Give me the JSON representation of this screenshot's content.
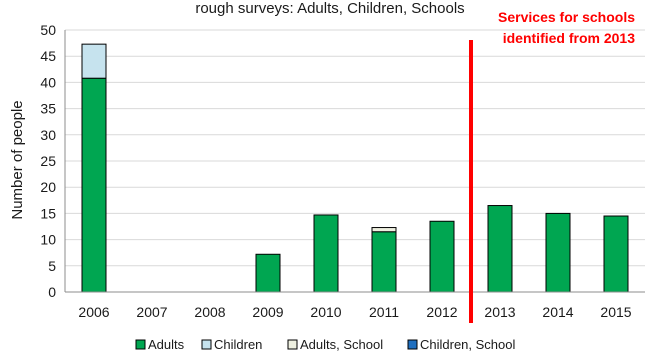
{
  "chart_data": {
    "type": "bar",
    "stacked": true,
    "title": "rough surveys: Adults, Children, Schools",
    "ylabel": "Number of people",
    "xlabel": "",
    "ylim": [
      0,
      50
    ],
    "yticks": [
      0,
      5,
      10,
      15,
      20,
      25,
      30,
      35,
      40,
      45,
      50
    ],
    "grid": true,
    "legend": "bottom",
    "categories": [
      "2006",
      "2007",
      "2008",
      "2009",
      "2010",
      "2011",
      "2012",
      "2013",
      "2014",
      "2015"
    ],
    "series": [
      {
        "name": "Adults",
        "color": "#00a651",
        "values": [
          40.8,
          0,
          0,
          7.2,
          14.7,
          11.5,
          13.5,
          16.5,
          15.0,
          14.5
        ]
      },
      {
        "name": "Children",
        "color": "#c6e3ee",
        "values": [
          6.5,
          0,
          0,
          0,
          0,
          0,
          0,
          0,
          0,
          0
        ]
      },
      {
        "name": "Adults, School",
        "color": "#eef0e0",
        "values": [
          0,
          0,
          0,
          0,
          0,
          0.8,
          0,
          0,
          0,
          0
        ]
      },
      {
        "name": "Children, School",
        "color": "#1f6fbf",
        "values": [
          0,
          0,
          0,
          0,
          0,
          0,
          0,
          0,
          0,
          0
        ]
      }
    ],
    "annotation": {
      "lines": [
        "Services for schools",
        "identified from 2013"
      ],
      "color": "#ff0000",
      "between": [
        "2012",
        "2013"
      ]
    }
  }
}
